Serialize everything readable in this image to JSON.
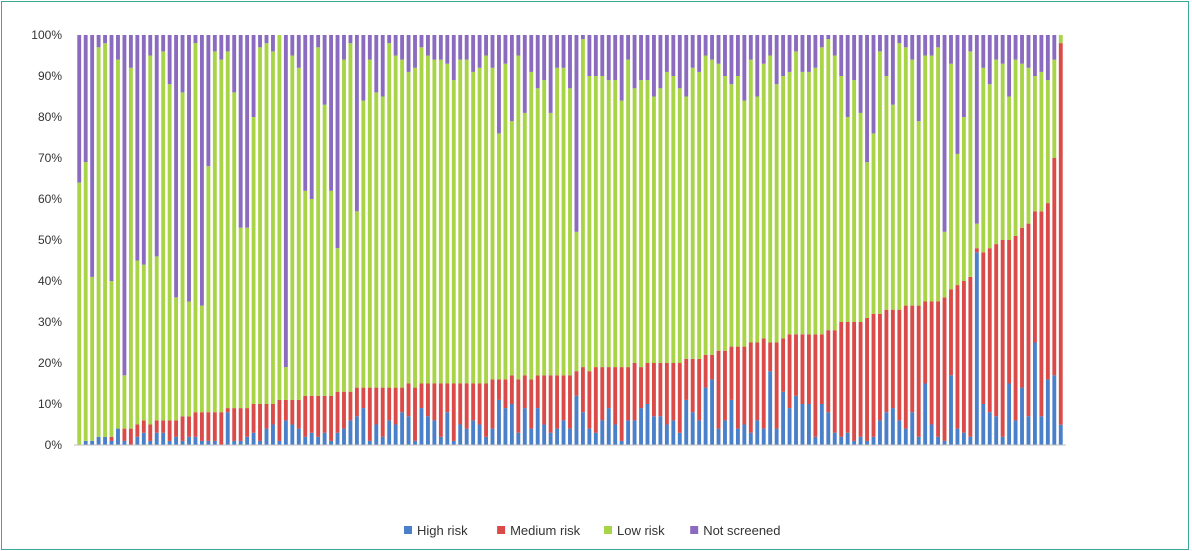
{
  "chart_data": {
    "type": "bar",
    "stacked": true,
    "normalized": true,
    "title": "",
    "xlabel": "",
    "ylabel": "",
    "ylim": [
      0,
      100
    ],
    "y_ticks": [
      "0%",
      "10%",
      "20%",
      "30%",
      "40%",
      "50%",
      "60%",
      "70%",
      "80%",
      "90%",
      "100%"
    ],
    "legend_position": "bottom",
    "x_tick_labels": "none",
    "series": [
      {
        "name": "High risk",
        "color": "#4a7fc9",
        "values": [
          0,
          1,
          1,
          2,
          2,
          1,
          4,
          1,
          0,
          2,
          3,
          1,
          3,
          3,
          1,
          2,
          1,
          2,
          2,
          1,
          1,
          1,
          0,
          8,
          1,
          1,
          2,
          3,
          1,
          4,
          5,
          1,
          6,
          5,
          4,
          2,
          3,
          2,
          3,
          1,
          3,
          4,
          6,
          7,
          9,
          1,
          5,
          2,
          6,
          5,
          8,
          7,
          1,
          9,
          7,
          6,
          2,
          8,
          1,
          5,
          4,
          6,
          5,
          2,
          4,
          11,
          9,
          10,
          3,
          9,
          4,
          9,
          5,
          3,
          4,
          6,
          4,
          12,
          8,
          4,
          3,
          6,
          9,
          5,
          1,
          6,
          6,
          9,
          10,
          7,
          7,
          5,
          6,
          3,
          11,
          8,
          6,
          14,
          16,
          4,
          6,
          11,
          4,
          5,
          3,
          6,
          4,
          18,
          4,
          13,
          9,
          12,
          10,
          10,
          2,
          10,
          8,
          3,
          2,
          3,
          1,
          2,
          1,
          2,
          6,
          8,
          9,
          6,
          4,
          8,
          2,
          15,
          5,
          2,
          1,
          17,
          4,
          3,
          2,
          47,
          10,
          8,
          7,
          2,
          15,
          6,
          14,
          7,
          25,
          7,
          16,
          17,
          5
        ]
      },
      {
        "name": "Medium risk",
        "color": "#d94a48",
        "values": [
          0,
          0,
          0,
          0,
          0,
          1,
          0,
          3,
          4,
          3,
          3,
          4,
          3,
          3,
          5,
          4,
          6,
          5,
          6,
          7,
          7,
          7,
          8,
          1,
          8,
          8,
          7,
          7,
          9,
          6,
          5,
          10,
          5,
          6,
          7,
          10,
          9,
          10,
          9,
          11,
          10,
          9,
          7,
          7,
          5,
          13,
          9,
          12,
          8,
          9,
          6,
          8,
          13,
          6,
          8,
          9,
          13,
          7,
          14,
          10,
          11,
          9,
          10,
          13,
          12,
          5,
          7,
          7,
          13,
          8,
          12,
          8,
          12,
          14,
          13,
          11,
          13,
          6,
          11,
          14,
          16,
          13,
          10,
          14,
          18,
          13,
          14,
          10,
          10,
          13,
          13,
          15,
          14,
          17,
          10,
          13,
          15,
          8,
          6,
          19,
          17,
          13,
          20,
          19,
          22,
          19,
          22,
          7,
          21,
          13,
          18,
          15,
          17,
          17,
          25,
          17,
          20,
          25,
          28,
          27,
          29,
          28,
          30,
          30,
          26,
          25,
          24,
          27,
          30,
          26,
          32,
          20,
          30,
          33,
          35,
          21,
          35,
          37,
          39,
          1,
          37,
          40,
          42,
          48,
          35,
          45,
          39,
          47,
          32,
          50,
          43,
          53,
          94
        ]
      },
      {
        "name": "Low risk",
        "color": "#a9d448",
        "values": [
          64,
          68,
          40,
          95,
          96,
          38,
          90,
          13,
          88,
          40,
          38,
          90,
          40,
          90,
          82,
          30,
          79,
          28,
          90,
          26,
          60,
          88,
          86,
          87,
          77,
          44,
          44,
          70,
          87,
          88,
          86,
          89,
          8,
          84,
          81,
          50,
          48,
          85,
          71,
          50,
          35,
          81,
          85,
          43,
          70,
          80,
          72,
          71,
          84,
          81,
          80,
          76,
          78,
          82,
          80,
          79,
          79,
          78,
          74,
          79,
          79,
          76,
          77,
          80,
          76,
          60,
          77,
          62,
          79,
          64,
          75,
          70,
          72,
          64,
          75,
          75,
          70,
          34,
          80,
          72,
          71,
          71,
          70,
          70,
          65,
          75,
          67,
          70,
          69,
          65,
          67,
          71,
          70,
          67,
          64,
          71,
          70,
          73,
          72,
          70,
          67,
          64,
          66,
          60,
          69,
          60,
          67,
          70,
          63,
          64,
          64,
          69,
          64,
          64,
          65,
          70,
          71,
          67,
          60,
          50,
          59,
          51,
          38,
          44,
          64,
          57,
          50,
          65,
          63,
          60,
          45,
          60,
          60,
          62,
          16,
          55,
          32,
          40,
          55,
          6,
          45,
          40,
          45,
          43,
          35,
          43,
          40,
          38,
          33,
          34,
          30,
          24,
          2
        ]
      },
      {
        "name": "Not screened",
        "color": "#8a6bbf",
        "values": [
          36,
          31,
          59,
          3,
          2,
          60,
          6,
          83,
          8,
          55,
          56,
          5,
          54,
          4,
          12,
          64,
          14,
          65,
          2,
          66,
          32,
          4,
          6,
          4,
          14,
          47,
          47,
          20,
          3,
          2,
          4,
          0,
          81,
          5,
          8,
          38,
          40,
          3,
          17,
          38,
          52,
          6,
          2,
          43,
          16,
          6,
          14,
          15,
          2,
          5,
          6,
          9,
          8,
          3,
          5,
          6,
          6,
          7,
          11,
          6,
          6,
          9,
          8,
          5,
          8,
          24,
          7,
          21,
          5,
          19,
          9,
          13,
          11,
          19,
          8,
          8,
          13,
          48,
          1,
          10,
          10,
          10,
          11,
          11,
          16,
          6,
          13,
          11,
          11,
          15,
          13,
          9,
          10,
          13,
          15,
          8,
          9,
          5,
          6,
          7,
          10,
          12,
          10,
          16,
          6,
          15,
          7,
          5,
          12,
          10,
          9,
          4,
          9,
          9,
          8,
          3,
          1,
          5,
          10,
          20,
          11,
          19,
          31,
          24,
          4,
          10,
          17,
          2,
          3,
          6,
          21,
          5,
          5,
          3,
          48,
          7,
          29,
          20,
          4,
          46,
          8,
          12,
          6,
          7,
          15,
          6,
          7,
          8,
          10,
          9,
          11,
          6,
          0
        ]
      }
    ]
  }
}
